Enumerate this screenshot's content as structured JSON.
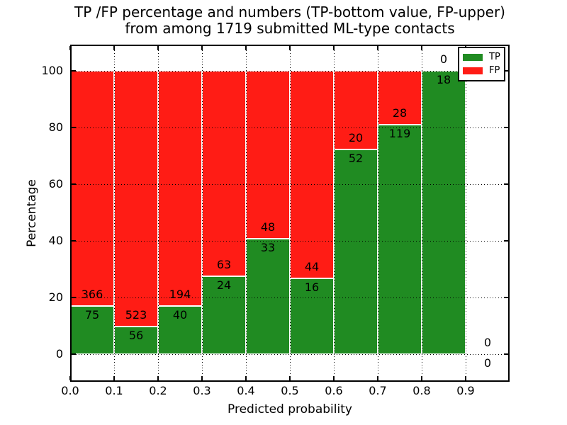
{
  "title": {
    "line1": "TP /FP percentage and numbers (TP-bottom value, FP-upper)",
    "line2": "from among 1719 submitted ML-type contacts"
  },
  "axes": {
    "xlabel": "Predicted probability",
    "ylabel": "Percentage",
    "xticklabels": [
      "0.0",
      "0.1",
      "0.2",
      "0.3",
      "0.4",
      "0.5",
      "0.6",
      "0.7",
      "0.8",
      "0.9"
    ],
    "yticklabels": [
      "0",
      "20",
      "40",
      "60",
      "80",
      "100"
    ],
    "yticks": [
      0,
      20,
      40,
      60,
      80,
      100
    ]
  },
  "legend": {
    "position": "upper right",
    "items": [
      {
        "label": "TP",
        "color": "#208b22"
      },
      {
        "label": "FP",
        "color": "#ff1c15"
      }
    ]
  },
  "chart_data": {
    "type": "bar",
    "stacked": true,
    "title": "TP /FP percentage and numbers (TP-bottom value, FP-upper) from among 1719 submitted ML-type contacts",
    "xlabel": "Predicted probability",
    "ylabel": "Percentage",
    "total_contacts": 1719,
    "bin_edges": [
      0.0,
      0.1,
      0.2,
      0.3,
      0.4,
      0.5,
      0.6,
      0.7,
      0.8,
      0.9,
      1.0
    ],
    "categories": [
      "0.0-0.1",
      "0.1-0.2",
      "0.2-0.3",
      "0.3-0.4",
      "0.4-0.5",
      "0.5-0.6",
      "0.6-0.7",
      "0.7-0.8",
      "0.8-0.9",
      "0.9-1.0"
    ],
    "series": [
      {
        "name": "TP",
        "color": "#208b22",
        "counts": [
          75,
          56,
          40,
          24,
          33,
          16,
          52,
          119,
          18,
          0
        ]
      },
      {
        "name": "FP",
        "color": "#ff1c15",
        "counts": [
          366,
          523,
          194,
          63,
          48,
          44,
          20,
          28,
          0,
          0
        ]
      }
    ],
    "tp_percent": [
      17.0,
      9.7,
      17.1,
      27.6,
      40.7,
      26.7,
      72.2,
      81.0,
      100.0,
      0.0
    ],
    "xlim": [
      0.0,
      1.0
    ],
    "ylim": [
      -10,
      110
    ],
    "grid": true,
    "grid_style": "dotted",
    "legend_position": "upper right"
  }
}
